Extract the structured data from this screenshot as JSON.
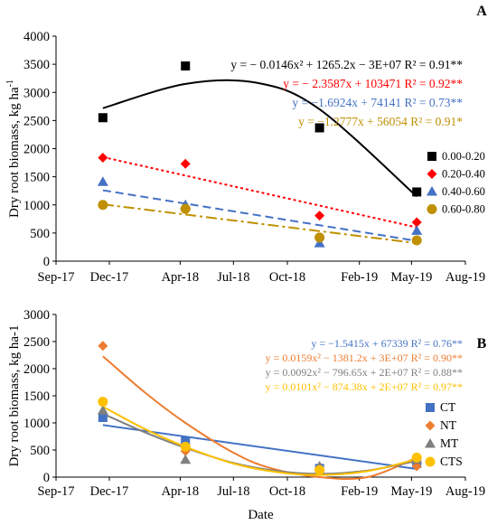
{
  "chart_data": [
    {
      "type": "scatter",
      "panel_label": "A",
      "ylabel": "Dry root biomass, kg ha",
      "ylabel_sup": "-1",
      "xlabel": "",
      "ylim": [
        0,
        4000
      ],
      "yticks": [
        "0",
        "500",
        "1000",
        "1500",
        "2000",
        "2500",
        "3000",
        "3500",
        "4000"
      ],
      "x_ticks": [
        "Sep-17",
        "Dec-17",
        "Apr-18",
        "Jul-18",
        "Oct-18",
        "Feb-19",
        "May-19",
        "Aug-19"
      ],
      "x_dates": [
        "2017-09-01",
        "2017-12-01",
        "2018-04-01",
        "2018-07-01",
        "2018-10-01",
        "2019-02-01",
        "2019-05-01",
        "2019-08-01"
      ],
      "legend_position": "right",
      "series": [
        {
          "name": "0.00-0.20",
          "marker": "square",
          "color": "#000000",
          "line": "solid",
          "x": [
            "2017-11-20",
            "2018-04-10",
            "2018-11-25",
            "2019-05-10"
          ],
          "y": [
            2550,
            3470,
            2370,
            1230
          ],
          "fit": "quadratic",
          "equation": "y = − 0.0146x² + 1265.2x − 3E+07 R² = 0.91**",
          "fit_curve": {
            "x": [
              "2017-11-20",
              "2018-04-10",
              "2018-08-10",
              "2018-11-25",
              "2019-05-10"
            ],
            "y": [
              2720,
              3150,
              3170,
              2700,
              1150
            ]
          }
        },
        {
          "name": "0.20-0.40",
          "marker": "diamond",
          "color": "#ff0000",
          "line": "dotted",
          "x": [
            "2017-11-20",
            "2018-04-10",
            "2018-11-25",
            "2019-05-10"
          ],
          "y": [
            1840,
            1730,
            810,
            690
          ],
          "fit": "linear",
          "equation": "y = − 2.3587x + 103471 R² = 0.92**",
          "fit_curve": {
            "x": [
              "2017-11-20",
              "2019-05-10"
            ],
            "y": [
              1850,
              600
            ]
          }
        },
        {
          "name": "0.40-0.60",
          "marker": "triangle",
          "color": "#4472c4",
          "line": "dashed",
          "x": [
            "2017-11-20",
            "2018-04-10",
            "2018-11-25",
            "2019-05-10"
          ],
          "y": [
            1410,
            1000,
            320,
            540
          ],
          "fit": "linear",
          "equation": "y = −1.6924x + 74141 R² = 0.73**",
          "fit_curve": {
            "x": [
              "2017-11-20",
              "2019-05-10"
            ],
            "y": [
              1260,
              360
            ]
          }
        },
        {
          "name": "0.60-0.80",
          "marker": "circle",
          "color": "#bf9000",
          "line": "dashdot",
          "x": [
            "2017-11-20",
            "2018-04-10",
            "2018-11-25",
            "2019-05-10"
          ],
          "y": [
            1000,
            930,
            420,
            370
          ],
          "fit": "linear",
          "equation": "y = −1.2777x + 56054 R² = 0.91*",
          "fit_curve": {
            "x": [
              "2017-11-20",
              "2019-05-10"
            ],
            "y": [
              1010,
              320
            ]
          }
        }
      ]
    },
    {
      "type": "scatter",
      "panel_label": "B",
      "ylabel": "Dry root biomass, kg ha-1",
      "ylabel_sup": "",
      "xlabel": "Date",
      "ylim": [
        0,
        3000
      ],
      "yticks": [
        "0",
        "500",
        "1000",
        "1500",
        "2000",
        "2500",
        "3000"
      ],
      "x_ticks": [
        "Sep-17",
        "Dec-17",
        "Apr-18",
        "Jul-18",
        "Oct-18",
        "Feb-19",
        "May-19",
        "Aug-19"
      ],
      "x_dates": [
        "2017-09-01",
        "2017-12-01",
        "2018-04-01",
        "2018-07-01",
        "2018-10-01",
        "2019-02-01",
        "2019-05-01",
        "2019-08-01"
      ],
      "legend_position": "right",
      "series": [
        {
          "name": "CT",
          "marker": "square",
          "color": "#4472c4",
          "line": "solid",
          "x": [
            "2017-11-20",
            "2018-04-10",
            "2018-11-25",
            "2019-05-10"
          ],
          "y": [
            1100,
            660,
            160,
            250
          ],
          "fit": "linear",
          "equation": "y = −1.5415x + 67339 R² = 0.76**",
          "fit_curve": {
            "x": [
              "2017-11-20",
              "2019-05-10"
            ],
            "y": [
              960,
              150
            ]
          }
        },
        {
          "name": "NT",
          "marker": "diamond",
          "color": "#ed7d31",
          "line": "solid",
          "x": [
            "2017-11-20",
            "2018-04-10",
            "2018-11-25",
            "2019-05-10"
          ],
          "y": [
            2420,
            480,
            150,
            200
          ],
          "fit": "quadratic",
          "equation": "y = 0.0159x² − 1381.2x + 3E+07 R² = 0.90**",
          "fit_curve": {
            "x": [
              "2017-11-20",
              "2018-02-01",
              "2018-04-10",
              "2018-07-01",
              "2018-09-01",
              "2018-11-25",
              "2019-02-15",
              "2019-05-10"
            ],
            "y": [
              2230,
              1550,
              1000,
              450,
              170,
              0,
              0,
              360
            ]
          }
        },
        {
          "name": "MT",
          "marker": "triangle",
          "color": "#7f7f7f",
          "line": "solid",
          "x": [
            "2017-11-20",
            "2018-04-10",
            "2018-11-25",
            "2019-05-10"
          ],
          "y": [
            1230,
            320,
            200,
            320
          ],
          "fit": "quadratic",
          "equation": "y = 0.0092x² − 796.65x + 2E+07 R² = 0.88**",
          "fit_curve": {
            "x": [
              "2017-11-20",
              "2018-02-01",
              "2018-04-10",
              "2018-07-01",
              "2018-09-15",
              "2018-11-25",
              "2019-02-15",
              "2019-05-10"
            ],
            "y": [
              1170,
              820,
              540,
              260,
              110,
              60,
              120,
              300
            ]
          }
        },
        {
          "name": "CTS",
          "marker": "circle",
          "color": "#ffc000",
          "line": "solid",
          "x": [
            "2017-11-20",
            "2018-04-10",
            "2018-11-25",
            "2019-05-10"
          ],
          "y": [
            1390,
            560,
            130,
            360
          ],
          "fit": "quadratic",
          "equation": "y = 0.0101x² − 874.38x + 2E+07 R² = 0.97**",
          "fit_curve": {
            "x": [
              "2017-11-20",
              "2018-02-01",
              "2018-04-10",
              "2018-07-01",
              "2018-09-15",
              "2018-11-25",
              "2019-02-15",
              "2019-05-10"
            ],
            "y": [
              1300,
              880,
              560,
              250,
              90,
              40,
              110,
              330
            ]
          }
        }
      ]
    }
  ]
}
